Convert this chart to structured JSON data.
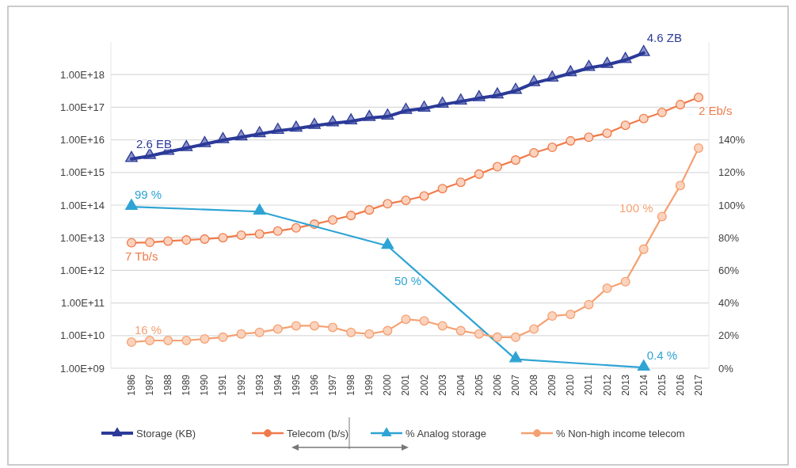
{
  "chart_data": {
    "type": "line",
    "categories": [
      "1986",
      "1987",
      "1988",
      "1989",
      "1990",
      "1991",
      "1992",
      "1993",
      "1994",
      "1995",
      "1996",
      "1997",
      "1998",
      "1999",
      "2000",
      "2001",
      "2002",
      "2003",
      "2004",
      "2005",
      "2006",
      "2007",
      "2008",
      "2009",
      "2010",
      "2011",
      "2012",
      "2013",
      "2014",
      "2015",
      "2016",
      "2017"
    ],
    "log": "y",
    "ylim": [
      1000000000.0,
      1e+19
    ],
    "yticks": [
      {
        "value": 1000000000.0,
        "label": "1.00E+09"
      },
      {
        "value": 10000000000.0,
        "label": "1.00E+10"
      },
      {
        "value": 100000000000.0,
        "label": "1.00E+11"
      },
      {
        "value": 1000000000000.0,
        "label": "1.00E+12"
      },
      {
        "value": 10000000000000.0,
        "label": "1.00E+13"
      },
      {
        "value": 100000000000000.0,
        "label": "1.00E+14"
      },
      {
        "value": 1000000000000000.0,
        "label": "1.00E+15"
      },
      {
        "value": 1e+16,
        "label": "1.00E+16"
      },
      {
        "value": 1e+17,
        "label": "1.00E+17"
      },
      {
        "value": 1e+18,
        "label": "1.00E+18"
      }
    ],
    "y2lim": [
      0,
      200
    ],
    "y2ticks": [
      {
        "value": 0,
        "label": "0%"
      },
      {
        "value": 20,
        "label": "20%"
      },
      {
        "value": 40,
        "label": "40%"
      },
      {
        "value": 60,
        "label": "60%"
      },
      {
        "value": 80,
        "label": "80%"
      },
      {
        "value": 100,
        "label": "100%"
      },
      {
        "value": 120,
        "label": "120%"
      },
      {
        "value": 140,
        "label": "140%"
      }
    ],
    "grid": "y",
    "legend": "bottom",
    "series": [
      {
        "name": "Storage (KB)",
        "color": "#2b3a98",
        "marker": "triangle",
        "values": [
          2600000000000000.0,
          3200000000000000.0,
          4300000000000000.0,
          5600000000000000.0,
          7400000000000000.0,
          9800000000000000.0,
          1.2e+16,
          1.5e+16,
          1.9e+16,
          2.2e+16,
          2.7e+16,
          3.2e+16,
          3.7e+16,
          4.7e+16,
          5.2e+16,
          7.8e+16,
          9.1e+16,
          1.2e+17,
          1.5e+17,
          1.9e+17,
          2.3e+17,
          3.2e+17,
          5.5e+17,
          7.6e+17,
          1.1e+18,
          1.6e+18,
          2e+18,
          2.8e+18,
          4.6e+18,
          null,
          null,
          null
        ]
      },
      {
        "name": "Telecom (b/s)",
        "color": "#ef7b4b",
        "marker": "circle",
        "values": [
          7000000000000.0,
          7200000000000.0,
          7900000000000.0,
          8500000000000.0,
          9100000000000.0,
          10000000000000.0,
          12000000000000.0,
          13000000000000.0,
          16000000000000.0,
          20000000000000.0,
          26000000000000.0,
          35000000000000.0,
          48000000000000.0,
          71000000000000.0,
          110000000000000.0,
          140000000000000.0,
          190000000000000.0,
          320000000000000.0,
          500000000000000.0,
          890000000000000.0,
          1500000000000000.0,
          2400000000000000.0,
          4000000000000000.0,
          5900000000000000.0,
          9300000000000000.0,
          1.2e+16,
          1.6e+16,
          2.8e+16,
          4.5e+16,
          6.9e+16,
          1.2e+17,
          2e+17
        ]
      },
      {
        "name": "% Analog storage",
        "color": "#2ea4d4",
        "marker": "triangle",
        "axis": "y2",
        "value_labels": [
          "99 %",
          null,
          null,
          null,
          null,
          null,
          null,
          null,
          null,
          null,
          null,
          null,
          null,
          null,
          null,
          null,
          null,
          null,
          null,
          null,
          null,
          null,
          null,
          null,
          null,
          null,
          null,
          null,
          "0.4 %",
          null,
          null,
          null
        ],
        "values": [
          99,
          null,
          null,
          null,
          null,
          null,
          null,
          96,
          null,
          null,
          null,
          null,
          null,
          null,
          75,
          null,
          null,
          null,
          null,
          null,
          null,
          5.5,
          null,
          null,
          null,
          null,
          null,
          null,
          0.4,
          null,
          null,
          null
        ]
      },
      {
        "name": "% Non-high income telecom",
        "color": "#f5a070",
        "marker": "circle",
        "axis": "y2",
        "value_labels": [
          "16 %",
          null,
          null,
          null,
          null,
          null,
          null,
          null,
          null,
          null,
          null,
          null,
          null,
          null,
          null,
          null,
          null,
          null,
          null,
          null,
          null,
          null,
          null,
          null,
          null,
          null,
          null,
          null,
          null,
          null,
          null,
          null
        ],
        "values": [
          16,
          17,
          17,
          17,
          18,
          19,
          21,
          22,
          24,
          26,
          26,
          25,
          22,
          21,
          23,
          30,
          29,
          26,
          23,
          21,
          19,
          19,
          24,
          32,
          33,
          39,
          49,
          53,
          73,
          93,
          112,
          135
        ]
      }
    ],
    "annotations": [
      {
        "text": "2.6 EB",
        "x": "1986",
        "y": 2600000000000000.0
      },
      {
        "text": "4.6 ZB",
        "x": "2014",
        "y": 4.6e+18
      },
      {
        "text": "2 Eb/s",
        "x": "2017",
        "y": 2e+17
      },
      {
        "text": "7 Tb/s",
        "x": "1986",
        "y": 7000000000000.0
      },
      "50 %",
      "100 %"
    ]
  }
}
